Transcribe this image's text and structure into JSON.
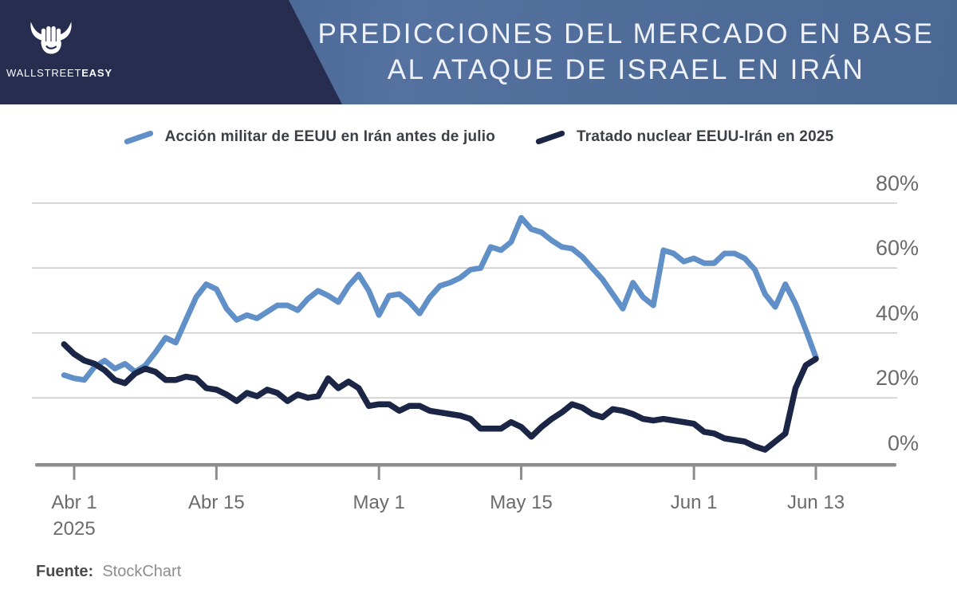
{
  "header": {
    "title_line1": "PREDICCIONES DEL MERCADO EN BASE",
    "title_line2": "AL ATAQUE DE ISRAEL EN IRÁN"
  },
  "brand": {
    "wordmark_regular": "WALLSTREET",
    "wordmark_bold": "EASY"
  },
  "legend": {
    "items": [
      {
        "label": "Acción militar de EEUU en Irán antes de julio",
        "color": "#6090c7"
      },
      {
        "label": "Tratado nuclear EEUU-Irán en 2025",
        "color": "#1b2546"
      }
    ]
  },
  "footer": {
    "source_label": "Fuente:",
    "source_value": "StockChart"
  },
  "colors": {
    "brand_navy": "#262d4f",
    "banner_blue": "#54719f",
    "series_light_blue": "#6090c7",
    "series_dark_navy": "#1b2546",
    "gridline": "#c9c9c9",
    "axis": "#8c8c8c",
    "tick_text": "#6b6b6b"
  },
  "chart_data": {
    "type": "line",
    "title": "Predicciones del mercado en base al ataque de Israel en Irán",
    "xlabel": "",
    "ylabel": "",
    "ylim": [
      0,
      80
    ],
    "grid": true,
    "legend_position": "top",
    "start_date": "2025-03-31",
    "cadence": "daily",
    "x_axis": {
      "ticks": [
        {
          "label": "Abr 1",
          "sublabel": "2025",
          "day": 0
        },
        {
          "label": "Abr 15",
          "sublabel": "",
          "day": 14
        },
        {
          "label": "May 1",
          "sublabel": "",
          "day": 30
        },
        {
          "label": "May 15",
          "sublabel": "",
          "day": 44
        },
        {
          "label": "Jun 1",
          "sublabel": "",
          "day": 61
        },
        {
          "label": "Jun 13",
          "sublabel": "",
          "day": 73
        }
      ]
    },
    "y_axis": {
      "ticks": [
        {
          "label": "0%",
          "value": 0
        },
        {
          "label": "20%",
          "value": 20
        },
        {
          "label": "40%",
          "value": 40
        },
        {
          "label": "60%",
          "value": 60
        },
        {
          "label": "80%",
          "value": 80
        }
      ],
      "unit": "%"
    },
    "series": [
      {
        "name": "Acción militar de EEUU en Irán antes de julio",
        "color": "#6090c7",
        "stroke_width": 7,
        "start_day": -1,
        "values": [
          27,
          26,
          25.5,
          29.5,
          31.5,
          29,
          30.5,
          28,
          30,
          34,
          38.5,
          37,
          44,
          51,
          55,
          53.5,
          47.5,
          44,
          45.5,
          44.5,
          46.5,
          48.5,
          48.5,
          47,
          50.5,
          53,
          51.5,
          49.5,
          54.5,
          58,
          53,
          45.5,
          51.5,
          52,
          49.5,
          46,
          51,
          54.5,
          55.5,
          57,
          59.5,
          60,
          66.5,
          65.5,
          68,
          75.5,
          72,
          71,
          68.5,
          66.5,
          66,
          63.5,
          60,
          56.5,
          52,
          47.5,
          55.5,
          51,
          48.5,
          65.5,
          64.5,
          62,
          63,
          61.5,
          61.5,
          64.5,
          64.5,
          63,
          59.5,
          52,
          48,
          55,
          49,
          41,
          32.5
        ]
      },
      {
        "name": "Tratado nuclear EEUU-Irán en 2025",
        "color": "#1b2546",
        "stroke_width": 7.5,
        "start_day": -1,
        "values": [
          36.5,
          33.5,
          31.5,
          30.5,
          28.5,
          25.5,
          24.5,
          27.5,
          29,
          28,
          25.5,
          25.5,
          26.5,
          26,
          23,
          22.5,
          21,
          19,
          21.5,
          20.5,
          22.5,
          21.5,
          19,
          21,
          20,
          20.5,
          26,
          23,
          25,
          23,
          17.5,
          18,
          18,
          16,
          17.5,
          17.5,
          16,
          15.5,
          15,
          14.5,
          13.5,
          10.5,
          10.5,
          10.5,
          12.5,
          11,
          8,
          11,
          13.5,
          15.5,
          18,
          17,
          15,
          14,
          16.5,
          16,
          15,
          13.5,
          13,
          13.5,
          13,
          12.5,
          12,
          9.5,
          9,
          7.5,
          7,
          6.5,
          5,
          4,
          6.5,
          9,
          23,
          30,
          32
        ]
      }
    ]
  }
}
